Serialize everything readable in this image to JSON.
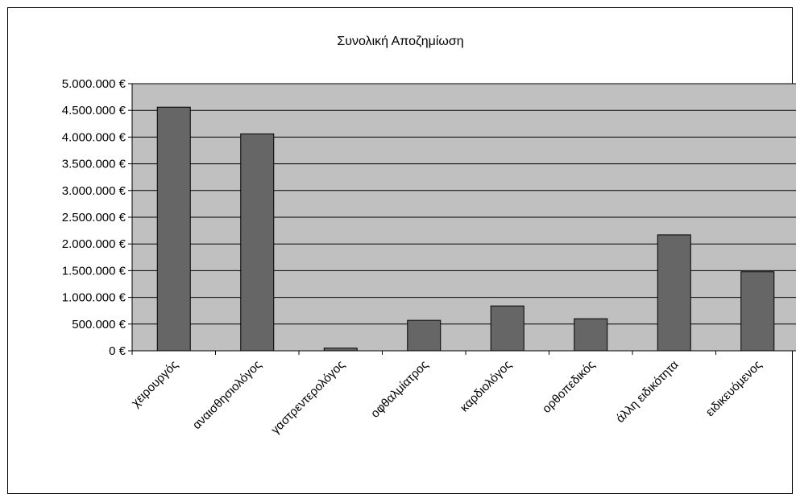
{
  "chart_data": {
    "type": "bar",
    "title": "Συνολική Αποζημίωση",
    "xlabel": "",
    "ylabel": "",
    "categories": [
      "χειρουργός",
      "αναισθησιολόγος",
      "γαστρεντερολόγος",
      "οφθαλμίατρος",
      "καρδιολόγος",
      "ορθοπεδικός",
      "άλλη ειδικότητα",
      "ειδικευόμενος"
    ],
    "values": [
      4560000,
      4060000,
      50000,
      570000,
      840000,
      600000,
      2170000,
      1480000
    ],
    "ylim": [
      0,
      5000000
    ],
    "ytick_labels": [
      "0 €",
      "500.000 €",
      "1.000.000 €",
      "1.500.000 €",
      "2.000.000 €",
      "2.500.000 €",
      "3.000.000 €",
      "3.500.000 €",
      "4.000.000 €",
      "4.500.000 €",
      "5.000.000 €"
    ],
    "grid": true,
    "legend": "none",
    "colors": {
      "plot_background": "#c0c0c0",
      "bar_fill": "#666666",
      "bar_stroke": "#000000",
      "grid": "#000000"
    }
  }
}
